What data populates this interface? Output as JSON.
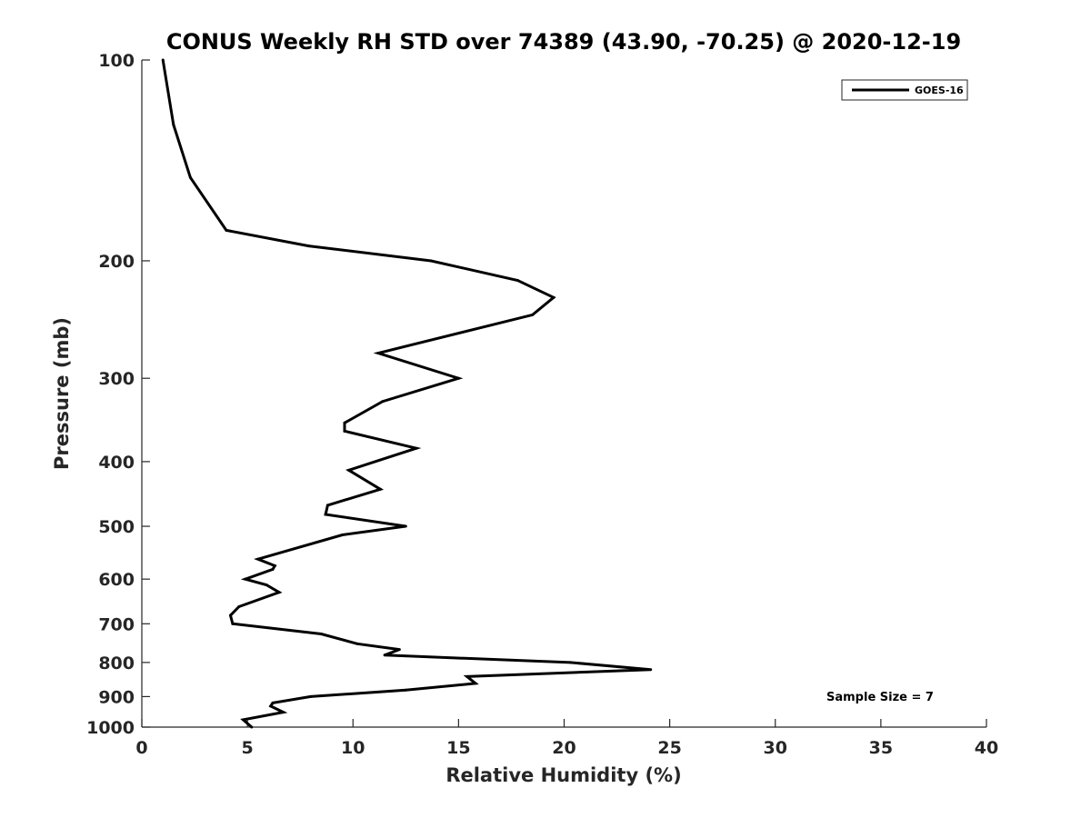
{
  "chart_data": {
    "type": "line",
    "title": "CONUS Weekly RH STD over 74389 (43.90, -70.25) @ 2020-12-19",
    "xlabel": "Relative Humidity (%)",
    "ylabel": "Pressure (mb)",
    "xlim": [
      0,
      40
    ],
    "ylim": [
      100,
      1000
    ],
    "y_scale": "log",
    "y_reversed": true,
    "x_ticks": [
      0,
      5,
      10,
      15,
      20,
      25,
      30,
      35,
      40
    ],
    "x_tick_labels": [
      "0",
      "5",
      "10",
      "15",
      "20",
      "25",
      "30",
      "35",
      "40"
    ],
    "y_ticks": [
      100,
      200,
      300,
      400,
      500,
      600,
      700,
      800,
      900,
      1000
    ],
    "y_tick_labels": [
      "100",
      "200",
      "300",
      "400",
      "500",
      "600",
      "700",
      "800",
      "900",
      "1000"
    ],
    "grid": false,
    "legend": {
      "position": "top-right",
      "entries": [
        "GOES-16"
      ]
    },
    "annotation": "Sample Size = 7",
    "series": [
      {
        "name": "GOES-16",
        "color": "#000000",
        "points": [
          [
            1.0,
            100
          ],
          [
            1.5,
            125
          ],
          [
            2.3,
            150
          ],
          [
            4.0,
            180
          ],
          [
            7.9,
            190
          ],
          [
            13.7,
            200
          ],
          [
            17.8,
            214
          ],
          [
            19.5,
            227
          ],
          [
            18.5,
            241
          ],
          [
            11.2,
            275
          ],
          [
            15.0,
            300
          ],
          [
            11.4,
            325
          ],
          [
            9.6,
            350
          ],
          [
            9.6,
            360
          ],
          [
            13.0,
            382
          ],
          [
            9.8,
            412
          ],
          [
            11.3,
            440
          ],
          [
            8.8,
            465
          ],
          [
            8.7,
            480
          ],
          [
            12.5,
            500
          ],
          [
            9.5,
            515
          ],
          [
            5.5,
            560
          ],
          [
            6.3,
            573
          ],
          [
            6.2,
            580
          ],
          [
            4.9,
            600
          ],
          [
            5.9,
            612
          ],
          [
            6.5,
            628
          ],
          [
            4.6,
            660
          ],
          [
            4.2,
            680
          ],
          [
            4.3,
            700
          ],
          [
            8.5,
            725
          ],
          [
            10.2,
            750
          ],
          [
            12.2,
            765
          ],
          [
            11.5,
            780
          ],
          [
            20.3,
            800
          ],
          [
            24.1,
            820
          ],
          [
            15.4,
            840
          ],
          [
            15.8,
            860
          ],
          [
            12.5,
            880
          ],
          [
            8.0,
            900
          ],
          [
            6.2,
            920
          ],
          [
            6.1,
            930
          ],
          [
            6.7,
            950
          ],
          [
            4.8,
            975
          ],
          [
            5.2,
            1000
          ]
        ]
      }
    ]
  }
}
